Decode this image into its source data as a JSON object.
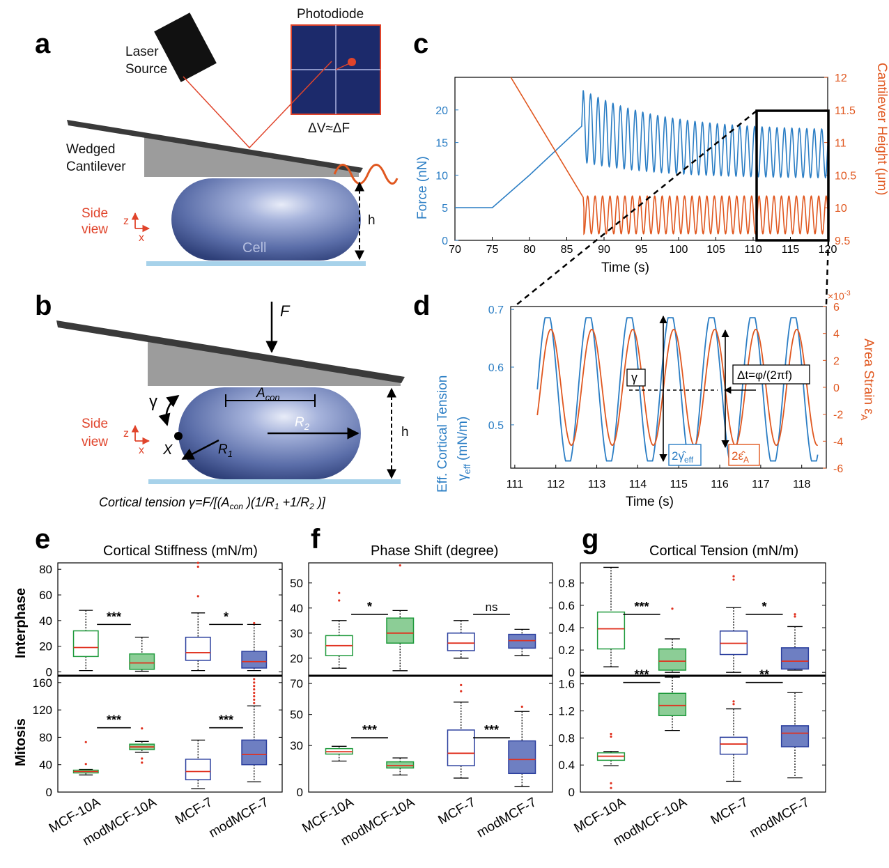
{
  "panels": {
    "a": {
      "letter": "a",
      "laser_line1": "Laser",
      "laser_line2": "Source",
      "photodiode": "Photodiode",
      "dv_df": "ΔV≈ΔF",
      "cantilever_line1": "Wedged",
      "cantilever_line2": "Cantilever",
      "side_line1": "Side",
      "side_line2": "view",
      "axis_z": "z",
      "axis_x": "x",
      "cell": "Cell",
      "h": "h"
    },
    "b": {
      "letter": "b",
      "force": "F",
      "gamma": "γ",
      "x_point": "X",
      "a_con_base": "A",
      "a_con_sub": "con",
      "r1_base": "R",
      "r1_sub": "1",
      "r2_base": "R",
      "r2_sub": "2",
      "side_line1": "Side",
      "side_line2": "view",
      "axis_z": "z",
      "axis_x": "x",
      "h": "h",
      "equation": "Cortical tension γ=F/[(A_con )(1/R_1 +1/R_2 )]",
      "eq_part1": "Cortical tension γ=F/[(A",
      "eq_sub1": "con",
      "eq_part2": " )(1/R",
      "eq_sub2": "1",
      "eq_part3": " +1/R",
      "eq_sub3": "2",
      "eq_part4": " )]"
    },
    "c": {
      "letter": "c",
      "xlabel": "Time (s)",
      "ylabel_left": "Force (nN)",
      "ylabel_right": "Cantilever Height (μm)"
    },
    "d": {
      "letter": "d",
      "xlabel": "Time (s)",
      "ylabel_left_1": "Eff. Cortical Tension",
      "ylabel_left_2_base": "γ",
      "ylabel_left_2_sub": "eff",
      "ylabel_left_2_unit": " (mN/m)",
      "ylabel_right_base": "Area Strain ε",
      "ylabel_right_sub": "A",
      "exponent_base": "×10",
      "exponent_sup": "-3",
      "gamma_box": "γ",
      "dt_box": "Δt=φ/(2πf)",
      "gamma_amp_base": "2γ̂",
      "gamma_amp_sub": "eff",
      "eps_amp_base": "2ε̂",
      "eps_amp_sub": "A"
    },
    "e": {
      "letter": "e",
      "title": "Cortical Stiffness (mN/m)"
    },
    "f": {
      "letter": "f",
      "title": "Phase Shift (degree)"
    },
    "g": {
      "letter": "g",
      "title": "Cortical Tension (mN/m)"
    }
  },
  "row_labels": {
    "interphase": "Interphase",
    "mitosis": "Mitosis"
  },
  "groups": [
    "MCF-10A",
    "modMCF-10A",
    "MCF-7",
    "modMCF-7"
  ],
  "colors": {
    "blue": "#2a7dc4",
    "orange": "#e0571f",
    "green": "#1f9a3c",
    "navy": "#2b3f9e",
    "median": "#e0311f",
    "photodiode": "#1c2a6b"
  },
  "chart_data": [
    {
      "id": "c",
      "type": "line",
      "xlabel": "Time (s)",
      "ylabel": "Force (nN)",
      "y2label": "Cantilever Height (μm)",
      "xlim": [
        70,
        120
      ],
      "ylim": [
        0,
        25
      ],
      "y2lim": [
        9.5,
        12
      ],
      "xticks": [
        70,
        75,
        80,
        85,
        90,
        95,
        100,
        105,
        110,
        115,
        120
      ],
      "yticks": [
        0,
        5,
        10,
        15,
        20
      ],
      "y2ticks": [
        9.5,
        10,
        10.5,
        11,
        11.5,
        12
      ],
      "series": [
        {
          "axis": "left",
          "color": "#2a7dc4",
          "approach": {
            "x": [
              70,
              75,
              80,
              87
            ],
            "y": [
              5,
              5,
              10,
              17.5
            ]
          },
          "oscillation": {
            "t_start": 87.2,
            "t_end": 120,
            "period": 1.0,
            "max_start": 23,
            "max_end": 16.8,
            "min_start": 12,
            "min_end": 9.5
          }
        },
        {
          "axis": "right",
          "color": "#e0571f",
          "approach": {
            "x": [
              77.5,
              87.2,
              87.3
            ],
            "y": [
              12,
              10.16,
              10
            ]
          },
          "oscillation": {
            "t_start": 87.3,
            "t_end": 120,
            "period": 1.0,
            "max": 10.18,
            "min": 9.6
          }
        }
      ]
    },
    {
      "id": "d",
      "type": "line",
      "xlabel": "Time (s)",
      "ylabel": "γeff (mN/m)",
      "y2label": "Area Strain εA",
      "xlim": [
        110.9,
        118.6
      ],
      "ylim": [
        0.425,
        0.705
      ],
      "y2lim": [
        -6,
        6
      ],
      "xticks": [
        111,
        112,
        113,
        114,
        115,
        116,
        117,
        118
      ],
      "yticks": [
        0.5,
        0.6,
        0.7
      ],
      "y2ticks": [
        -6,
        -4,
        -2,
        0,
        2,
        4,
        6
      ],
      "series": [
        {
          "name": "γeff",
          "axis": "left",
          "color": "#2a7dc4",
          "t_start": 111.55,
          "t_end": 118.4,
          "mean": 0.5615,
          "amplitude": 0.124,
          "period": 1.0,
          "phase_peak_time": 111.8
        },
        {
          "name": "εA",
          "axis": "right",
          "color": "#e0571f",
          "t_start": 111.55,
          "t_end": 118.4,
          "mean": 0,
          "amplitude": 4.3,
          "period": 1.0,
          "phase_peak_time": 111.88
        }
      ]
    },
    {
      "id": "e",
      "type": "box",
      "title": "Cortical Stiffness (mN/m)",
      "categories": [
        "MCF-10A",
        "modMCF-10A",
        "MCF-7",
        "modMCF-7"
      ],
      "interphase": {
        "ylim": [
          -3,
          85
        ],
        "yticks": [
          0,
          20,
          40,
          60,
          80
        ],
        "boxes": [
          {
            "q1": 12,
            "median": 19,
            "q3": 32,
            "wlo": 1,
            "whi": 48,
            "outliers": []
          },
          {
            "q1": 2,
            "median": 7,
            "q3": 14,
            "wlo": 0.5,
            "whi": 27,
            "outliers": []
          },
          {
            "q1": 9,
            "median": 15,
            "q3": 27,
            "wlo": 1,
            "whi": 46,
            "outliers": [
              59,
              82,
              85
            ]
          },
          {
            "q1": 3,
            "median": 8,
            "q3": 16,
            "wlo": 1,
            "whi": 37,
            "outliers": [
              38
            ]
          }
        ],
        "significance": [
          {
            "between": [
              0,
              1
            ],
            "y": 37,
            "label": "***"
          },
          {
            "between": [
              2,
              3
            ],
            "y": 37,
            "label": "*"
          }
        ]
      },
      "mitosis": {
        "ylim": [
          0,
          170
        ],
        "yticks": [
          0,
          40,
          80,
          120,
          160
        ],
        "boxes": [
          {
            "q1": 28,
            "median": 30,
            "q3": 32,
            "wlo": 25,
            "whi": 33,
            "outliers": [
              41,
              73
            ]
          },
          {
            "q1": 62,
            "median": 66,
            "q3": 70,
            "wlo": 58,
            "whi": 74,
            "outliers": [
              43,
              49,
              93
            ]
          },
          {
            "q1": 18,
            "median": 30,
            "q3": 48,
            "wlo": 5,
            "whi": 76,
            "outliers": []
          },
          {
            "q1": 40,
            "median": 55,
            "q3": 76,
            "wlo": 15,
            "whi": 126,
            "outliers": [
              130,
              135,
              140,
              145,
              150,
              155,
              160,
              165
            ]
          }
        ],
        "significance": [
          {
            "between": [
              0,
              1
            ],
            "y": 94,
            "label": "***"
          },
          {
            "between": [
              2,
              3
            ],
            "y": 94,
            "label": "***"
          }
        ]
      }
    },
    {
      "id": "f",
      "type": "box",
      "title": "Phase Shift (degree)",
      "categories": [
        "MCF-10A",
        "modMCF-10A",
        "MCF-7",
        "modMCF-7"
      ],
      "interphase": {
        "ylim": [
          13,
          58
        ],
        "yticks": [
          20,
          30,
          40,
          50
        ],
        "boxes": [
          {
            "q1": 21,
            "median": 25,
            "q3": 29,
            "wlo": 16,
            "whi": 35,
            "outliers": [
              43,
              46
            ]
          },
          {
            "q1": 26,
            "median": 30,
            "q3": 36,
            "wlo": 15,
            "whi": 39,
            "outliers": [
              57,
              59
            ]
          },
          {
            "q1": 23,
            "median": 26,
            "q3": 30,
            "wlo": 20,
            "whi": 35,
            "outliers": []
          },
          {
            "q1": 24,
            "median": 27,
            "q3": 29.5,
            "wlo": 21,
            "whi": 31.5,
            "outliers": []
          }
        ],
        "significance": [
          {
            "between": [
              0,
              1
            ],
            "y": 37.5,
            "label": "*"
          },
          {
            "between": [
              2,
              3
            ],
            "y": 37.5,
            "label": "ns"
          }
        ]
      },
      "mitosis": {
        "ylim": [
          0,
          75
        ],
        "yticks": [
          0,
          30,
          50,
          70
        ],
        "boxes": [
          {
            "q1": 24.5,
            "median": 26,
            "q3": 28,
            "wlo": 20,
            "whi": 29.5,
            "outliers": []
          },
          {
            "q1": 15.5,
            "median": 17,
            "q3": 19.5,
            "wlo": 11,
            "whi": 22,
            "outliers": []
          },
          {
            "q1": 17,
            "median": 25,
            "q3": 40,
            "wlo": 9,
            "whi": 58,
            "outliers": [
              65,
              69
            ]
          },
          {
            "q1": 12,
            "median": 21,
            "q3": 33,
            "wlo": 3.5,
            "whi": 52,
            "outliers": [
              55
            ]
          }
        ],
        "significance": [
          {
            "between": [
              0,
              1
            ],
            "y": 35,
            "label": "***"
          },
          {
            "between": [
              2,
              3
            ],
            "y": 35,
            "label": "***"
          }
        ]
      }
    },
    {
      "id": "g",
      "type": "box",
      "title": "Cortical Tension (mN/m)",
      "categories": [
        "MCF-10A",
        "modMCF-10A",
        "MCF-7",
        "modMCF-7"
      ],
      "interphase": {
        "ylim": [
          -0.03,
          0.98
        ],
        "yticks": [
          0,
          0.2,
          0.4,
          0.6,
          0.8
        ],
        "boxes": [
          {
            "q1": 0.21,
            "median": 0.39,
            "q3": 0.54,
            "wlo": 0.05,
            "whi": 0.94,
            "outliers": []
          },
          {
            "q1": 0.02,
            "median": 0.1,
            "q3": 0.21,
            "wlo": 0,
            "whi": 0.3,
            "outliers": [
              0.57
            ]
          },
          {
            "q1": 0.16,
            "median": 0.26,
            "q3": 0.37,
            "wlo": 0,
            "whi": 0.58,
            "outliers": [
              0.83,
              0.86
            ]
          },
          {
            "q1": 0.03,
            "median": 0.1,
            "q3": 0.22,
            "wlo": 0.02,
            "whi": 0.41,
            "outliers": [
              0.5,
              0.52
            ]
          }
        ],
        "significance": [
          {
            "between": [
              0,
              1
            ],
            "y": 0.52,
            "label": "***"
          },
          {
            "between": [
              2,
              3
            ],
            "y": 0.52,
            "label": "*"
          }
        ]
      },
      "mitosis": {
        "ylim": [
          0,
          1.72
        ],
        "yticks": [
          0,
          0.4,
          0.8,
          1.2,
          1.6
        ],
        "boxes": [
          {
            "q1": 0.47,
            "median": 0.53,
            "q3": 0.58,
            "wlo": 0.39,
            "whi": 0.6,
            "outliers": [
              0.06,
              0.13,
              0.82,
              0.86
            ]
          },
          {
            "q1": 1.13,
            "median": 1.28,
            "q3": 1.46,
            "wlo": 0.91,
            "whi": 1.7,
            "outliers": []
          },
          {
            "q1": 0.56,
            "median": 0.71,
            "q3": 0.81,
            "wlo": 0.16,
            "whi": 1.23,
            "outliers": [
              1.3,
              1.34
            ]
          },
          {
            "q1": 0.67,
            "median": 0.87,
            "q3": 0.98,
            "wlo": 0.21,
            "whi": 1.47,
            "outliers": []
          }
        ],
        "significance": [
          {
            "between": [
              0,
              1
            ],
            "y": 1.62,
            "label": "***"
          },
          {
            "between": [
              2,
              3
            ],
            "y": 1.62,
            "label": "**"
          }
        ]
      }
    }
  ]
}
